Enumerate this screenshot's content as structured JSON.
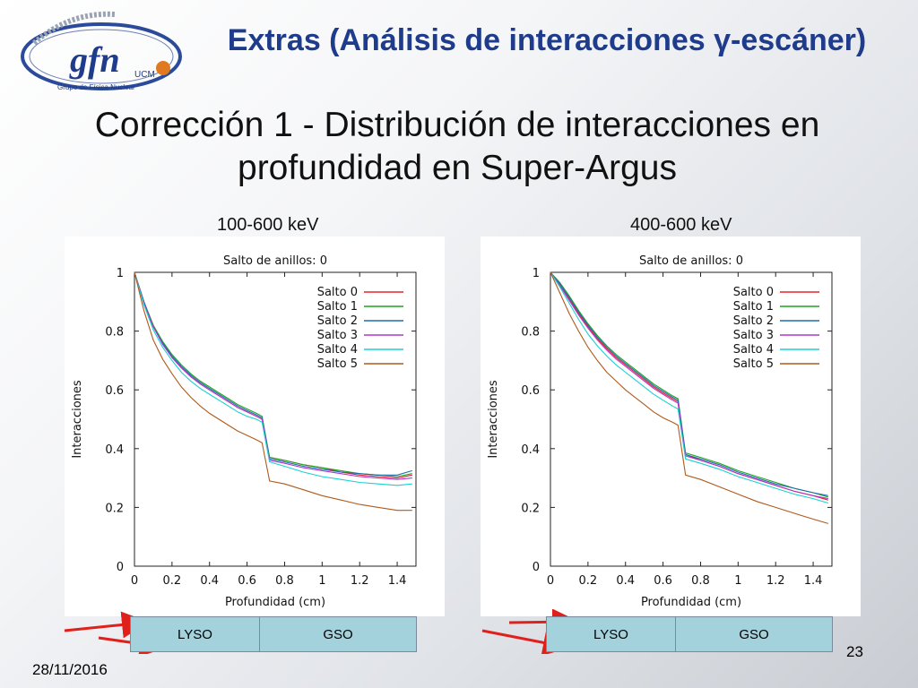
{
  "header": {
    "title": "Extras (Análisis de interacciones γ-escáner)",
    "logo_text": "gfn",
    "logo_subtext": "UCM",
    "logo_caption": "Grupo de Física Nuclear"
  },
  "slide_title": "Corrección 1 - Distribución de interacciones en profundidad en Super-Argus",
  "footer": {
    "date": "28/11/2016",
    "page": "23"
  },
  "crystal_labels": [
    "LYSO",
    "GSO"
  ],
  "colors": {
    "title_blue": "#1f3c8c",
    "arrow_red": "#e0201b",
    "crystal_fill": "#a3d2dc",
    "series": [
      "#e8202a",
      "#1fa31f",
      "#1b6fb0",
      "#b036c8",
      "#19d1d1",
      "#b05a1c"
    ]
  },
  "chart_data": [
    {
      "type": "line",
      "energy_label": "100-600 keV",
      "title": "Salto de anillos: 0",
      "xlabel": "Profundidad (cm)",
      "ylabel": "Interacciones",
      "xlim": [
        0,
        1.5
      ],
      "ylim": [
        0,
        1
      ],
      "xticks": [
        0,
        0.2,
        0.4,
        0.6,
        0.8,
        1,
        1.2,
        1.4
      ],
      "xtick_labels": [
        "0",
        "0.2",
        "0.4",
        "0.6",
        "0.8",
        "1",
        "1.2",
        "1.4"
      ],
      "yticks": [
        0,
        0.2,
        0.4,
        0.6,
        0.8,
        1
      ],
      "ytick_labels": [
        "0",
        "0.2",
        "0.4",
        "0.6",
        "0.8",
        "1"
      ],
      "legend_position": "top-right",
      "x": [
        0,
        0.05,
        0.1,
        0.15,
        0.2,
        0.25,
        0.3,
        0.35,
        0.4,
        0.45,
        0.5,
        0.55,
        0.6,
        0.65,
        0.68,
        0.72,
        0.8,
        0.9,
        1.0,
        1.1,
        1.2,
        1.3,
        1.4,
        1.48
      ],
      "series": [
        {
          "name": "Salto 0",
          "values": [
            1.0,
            0.9,
            0.82,
            0.76,
            0.71,
            0.675,
            0.645,
            0.62,
            0.6,
            0.58,
            0.56,
            0.54,
            0.525,
            0.51,
            0.5,
            0.37,
            0.36,
            0.345,
            0.335,
            0.32,
            0.31,
            0.305,
            0.3,
            0.31
          ]
        },
        {
          "name": "Salto 1",
          "values": [
            1.0,
            0.9,
            0.82,
            0.765,
            0.72,
            0.685,
            0.655,
            0.63,
            0.61,
            0.59,
            0.57,
            0.55,
            0.535,
            0.52,
            0.51,
            0.37,
            0.36,
            0.345,
            0.335,
            0.325,
            0.315,
            0.31,
            0.305,
            0.315
          ]
        },
        {
          "name": "Salto 2",
          "values": [
            1.0,
            0.9,
            0.815,
            0.76,
            0.715,
            0.68,
            0.65,
            0.625,
            0.605,
            0.585,
            0.565,
            0.545,
            0.53,
            0.515,
            0.505,
            0.365,
            0.355,
            0.34,
            0.33,
            0.32,
            0.315,
            0.31,
            0.31,
            0.325
          ]
        },
        {
          "name": "Salto 3",
          "values": [
            1.0,
            0.895,
            0.815,
            0.755,
            0.71,
            0.675,
            0.645,
            0.62,
            0.6,
            0.58,
            0.56,
            0.54,
            0.525,
            0.51,
            0.5,
            0.36,
            0.35,
            0.335,
            0.325,
            0.315,
            0.305,
            0.3,
            0.295,
            0.3
          ]
        },
        {
          "name": "Salto 4",
          "values": [
            1.0,
            0.89,
            0.805,
            0.745,
            0.7,
            0.66,
            0.63,
            0.605,
            0.585,
            0.565,
            0.545,
            0.525,
            0.51,
            0.5,
            0.49,
            0.355,
            0.34,
            0.32,
            0.305,
            0.295,
            0.285,
            0.28,
            0.275,
            0.28
          ]
        },
        {
          "name": "Salto 5",
          "values": [
            1.0,
            0.87,
            0.77,
            0.705,
            0.655,
            0.61,
            0.575,
            0.545,
            0.52,
            0.5,
            0.48,
            0.46,
            0.445,
            0.43,
            0.42,
            0.29,
            0.28,
            0.26,
            0.24,
            0.225,
            0.21,
            0.2,
            0.19,
            0.19
          ]
        }
      ]
    },
    {
      "type": "line",
      "energy_label": "400-600 keV",
      "title": "Salto de anillos: 0",
      "xlabel": "Profundidad (cm)",
      "ylabel": "Interacciones",
      "xlim": [
        0,
        1.5
      ],
      "ylim": [
        0,
        1
      ],
      "xticks": [
        0,
        0.2,
        0.4,
        0.6,
        0.8,
        1,
        1.2,
        1.4
      ],
      "xtick_labels": [
        "0",
        "0.2",
        "0.4",
        "0.6",
        "0.8",
        "1",
        "1.2",
        "1.4"
      ],
      "yticks": [
        0,
        0.2,
        0.4,
        0.6,
        0.8,
        1
      ],
      "ytick_labels": [
        "0",
        "0.2",
        "0.4",
        "0.6",
        "0.8",
        "1"
      ],
      "legend_position": "top-right",
      "x": [
        0,
        0.05,
        0.1,
        0.15,
        0.2,
        0.25,
        0.3,
        0.35,
        0.4,
        0.45,
        0.5,
        0.55,
        0.6,
        0.65,
        0.68,
        0.72,
        0.8,
        0.9,
        1.0,
        1.1,
        1.2,
        1.3,
        1.4,
        1.48
      ],
      "series": [
        {
          "name": "Salto 0",
          "values": [
            1.0,
            0.96,
            0.91,
            0.86,
            0.815,
            0.775,
            0.74,
            0.71,
            0.685,
            0.66,
            0.635,
            0.61,
            0.59,
            0.57,
            0.56,
            0.38,
            0.36,
            0.34,
            0.315,
            0.295,
            0.275,
            0.255,
            0.24,
            0.225
          ]
        },
        {
          "name": "Salto 1",
          "values": [
            1.0,
            0.965,
            0.92,
            0.87,
            0.825,
            0.785,
            0.75,
            0.72,
            0.695,
            0.67,
            0.645,
            0.62,
            0.6,
            0.58,
            0.57,
            0.385,
            0.37,
            0.35,
            0.325,
            0.305,
            0.285,
            0.265,
            0.25,
            0.235
          ]
        },
        {
          "name": "Salto 2",
          "values": [
            1.0,
            0.96,
            0.915,
            0.865,
            0.82,
            0.78,
            0.745,
            0.715,
            0.69,
            0.665,
            0.64,
            0.615,
            0.595,
            0.575,
            0.565,
            0.38,
            0.365,
            0.345,
            0.32,
            0.3,
            0.28,
            0.265,
            0.25,
            0.24
          ]
        },
        {
          "name": "Salto 3",
          "values": [
            1.0,
            0.955,
            0.905,
            0.855,
            0.81,
            0.77,
            0.735,
            0.705,
            0.68,
            0.655,
            0.63,
            0.605,
            0.585,
            0.565,
            0.555,
            0.375,
            0.36,
            0.34,
            0.315,
            0.295,
            0.275,
            0.255,
            0.24,
            0.23
          ]
        },
        {
          "name": "Salto 4",
          "values": [
            1.0,
            0.95,
            0.895,
            0.84,
            0.79,
            0.75,
            0.715,
            0.685,
            0.66,
            0.635,
            0.61,
            0.585,
            0.565,
            0.545,
            0.535,
            0.365,
            0.35,
            0.33,
            0.305,
            0.285,
            0.265,
            0.245,
            0.23,
            0.215
          ]
        },
        {
          "name": "Salto 5",
          "values": [
            1.0,
            0.93,
            0.86,
            0.8,
            0.745,
            0.7,
            0.66,
            0.63,
            0.6,
            0.575,
            0.55,
            0.525,
            0.505,
            0.49,
            0.48,
            0.31,
            0.295,
            0.27,
            0.245,
            0.22,
            0.2,
            0.18,
            0.16,
            0.145
          ]
        }
      ]
    }
  ]
}
